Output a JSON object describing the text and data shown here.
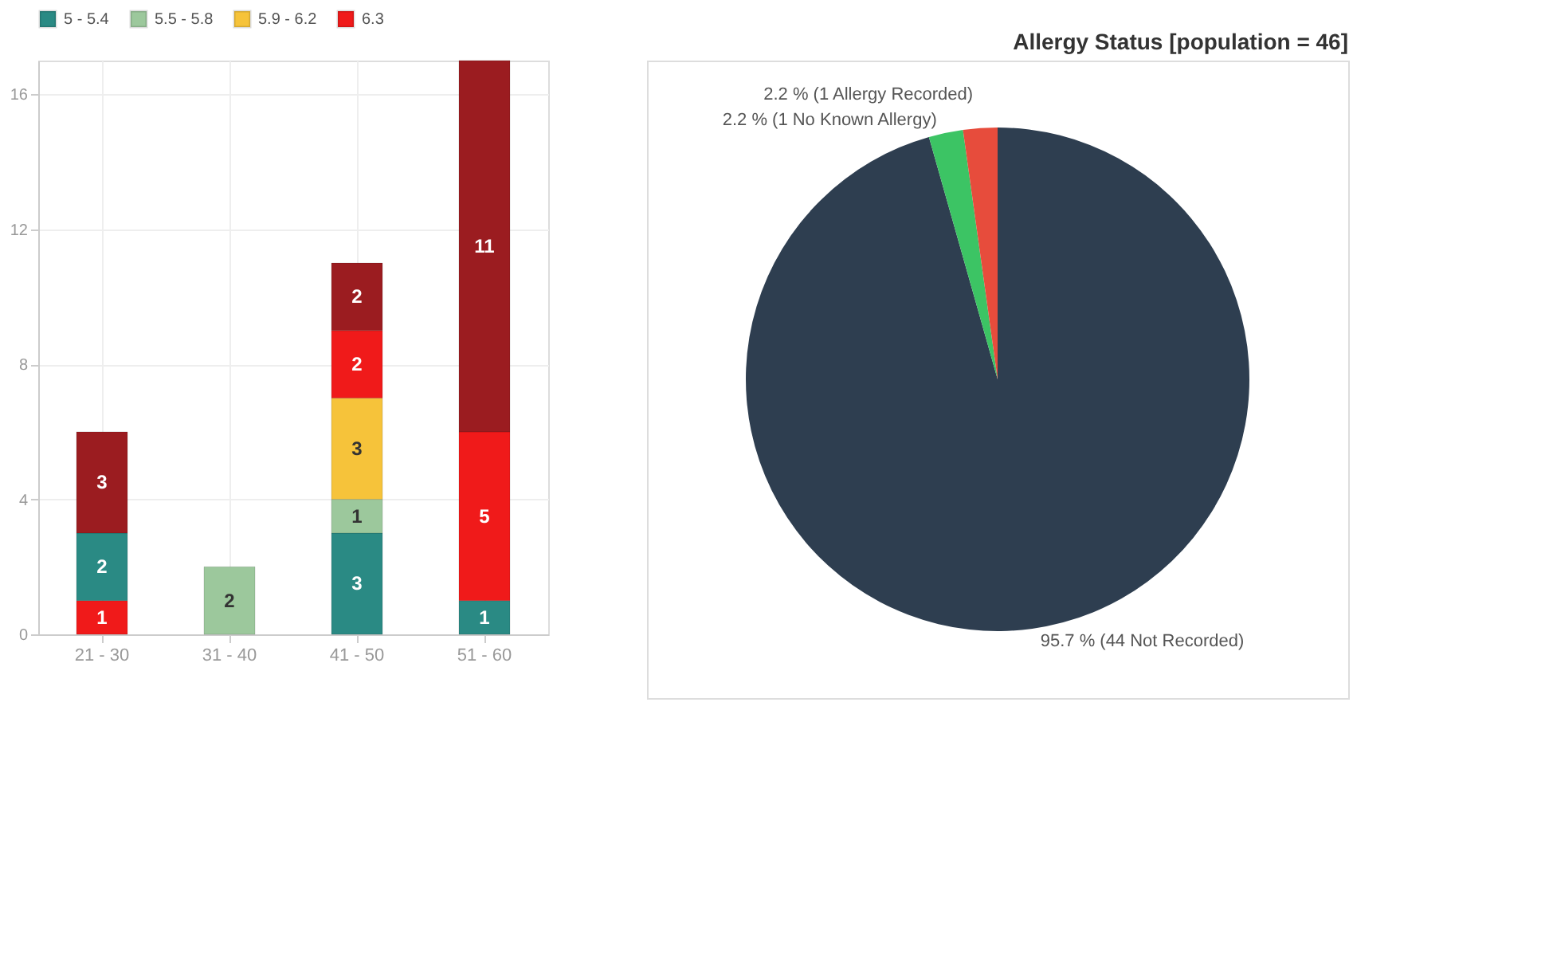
{
  "chart_data": [
    {
      "type": "bar",
      "stacked": true,
      "categories": [
        "21 - 30",
        "31 - 40",
        "41 - 50",
        "51 - 60"
      ],
      "series": [
        {
          "color": "#f01a1a",
          "values": [
            1,
            null,
            null,
            null
          ]
        },
        {
          "name": "5 - 5.4",
          "color": "#2a8a84",
          "values": [
            2,
            null,
            3,
            1
          ]
        },
        {
          "name": "5.5 - 5.8",
          "color": "#9cc89c",
          "values": [
            null,
            2,
            1,
            null
          ]
        },
        {
          "name": "5.9 - 6.2",
          "color": "#f6c33a",
          "values": [
            null,
            null,
            3,
            null
          ]
        },
        {
          "name": "6.3",
          "color": "#f01a1a",
          "values": [
            null,
            null,
            2,
            5
          ]
        },
        {
          "color": "#9b1c20",
          "values": [
            3,
            null,
            2,
            11
          ]
        }
      ],
      "ylim": [
        0,
        17
      ],
      "yticks": [
        0,
        4,
        8,
        12,
        16
      ],
      "grid": true,
      "legend": "top",
      "data_labels": true
    },
    {
      "type": "pie",
      "title": "Allergy Status [population = 46]",
      "categories": [
        "95.7 % (44 Not Recorded)",
        "2.2 % (1 No Known Allergy)",
        "2.2 % (1 Allergy Recorded)"
      ],
      "values": [
        95.7,
        2.2,
        2.2
      ],
      "colors": [
        "#2e3e50",
        "#3cc464",
        "#e74c3c"
      ]
    }
  ]
}
